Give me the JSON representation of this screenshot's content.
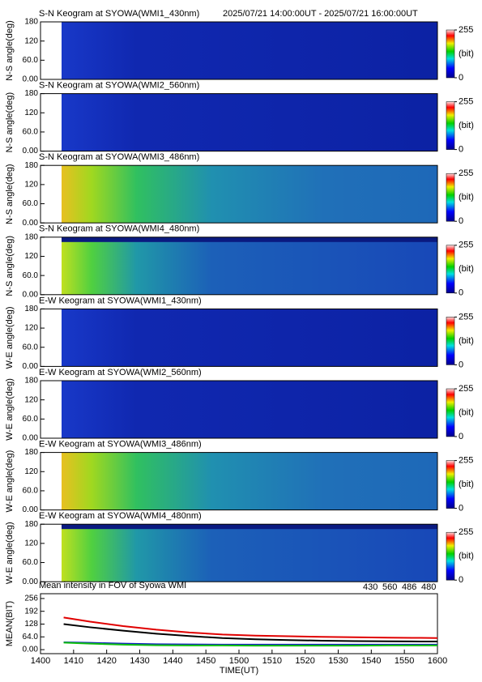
{
  "chart_data": [
    {
      "type": "heatmap",
      "title": "S-N Keogram at SYOWA(WMI1_430nm)",
      "subtitle": "2025/07/21 14:00:00UT - 2025/07/21 16:00:00UT",
      "ylabel": "N-S angle(deg)",
      "ylim": [
        0,
        180
      ],
      "yticks": [
        {
          "value": 0,
          "label": "0.00"
        },
        {
          "value": 60,
          "label": "60.0"
        },
        120,
        180
      ],
      "clim": [
        0,
        255
      ],
      "cticks": [
        0,
        255
      ],
      "clabel": "(bit)"
    },
    {
      "type": "heatmap",
      "title": "S-N Keogram at SYOWA(WMI2_560nm)",
      "ylabel": "N-S angle(deg)",
      "ylim": [
        0,
        180
      ],
      "yticks": [
        {
          "value": 0,
          "label": "0.00"
        },
        {
          "value": 60,
          "label": "60.0"
        },
        120,
        180
      ],
      "clim": [
        0,
        255
      ],
      "cticks": [
        0,
        255
      ],
      "clabel": "(bit)"
    },
    {
      "type": "heatmap",
      "title": "S-N Keogram at SYOWA(WMI3_486nm)",
      "ylabel": "N-S angle(deg)",
      "ylim": [
        0,
        180
      ],
      "yticks": [
        {
          "value": 0,
          "label": "0.00"
        },
        {
          "value": 60,
          "label": "60.0"
        },
        120,
        180
      ],
      "clim": [
        0,
        255
      ],
      "cticks": [
        0,
        255
      ],
      "clabel": "(bit)"
    },
    {
      "type": "heatmap",
      "title": "S-N Keogram at SYOWA(WMI4_480nm)",
      "ylabel": "N-S angle(deg)",
      "ylim": [
        0,
        180
      ],
      "yticks": [
        {
          "value": 0,
          "label": "0.00"
        },
        {
          "value": 60,
          "label": "60.0"
        },
        120,
        180
      ],
      "clim": [
        0,
        255
      ],
      "cticks": [
        0,
        255
      ],
      "clabel": "(bit)"
    },
    {
      "type": "heatmap",
      "title": "E-W Keogram at SYOWA(WMI1_430nm)",
      "ylabel": "W-E angle(deg)",
      "ylim": [
        0,
        180
      ],
      "yticks": [
        {
          "value": 0,
          "label": "0.00"
        },
        {
          "value": 60,
          "label": "60.0"
        },
        120,
        180
      ],
      "clim": [
        0,
        255
      ],
      "cticks": [
        0,
        255
      ],
      "clabel": "(bit)"
    },
    {
      "type": "heatmap",
      "title": "E-W Keogram at SYOWA(WMI2_560nm)",
      "ylabel": "W-E angle(deg)",
      "ylim": [
        0,
        180
      ],
      "yticks": [
        {
          "value": 0,
          "label": "0.00"
        },
        {
          "value": 60,
          "label": "60.0"
        },
        120,
        180
      ],
      "clim": [
        0,
        255
      ],
      "cticks": [
        0,
        255
      ],
      "clabel": "(bit)"
    },
    {
      "type": "heatmap",
      "title": "E-W Keogram at SYOWA(WMI3_486nm)",
      "ylabel": "W-E angle(deg)",
      "ylim": [
        0,
        180
      ],
      "yticks": [
        {
          "value": 0,
          "label": "0.00"
        },
        {
          "value": 60,
          "label": "60.0"
        },
        120,
        180
      ],
      "clim": [
        0,
        255
      ],
      "cticks": [
        0,
        255
      ],
      "clabel": "(bit)"
    },
    {
      "type": "heatmap",
      "title": "E-W Keogram at SYOWA(WMI4_480nm)",
      "ylabel": "W-E angle(deg)",
      "ylim": [
        0,
        180
      ],
      "yticks": [
        {
          "value": 0,
          "label": "0.00"
        },
        {
          "value": 60,
          "label": "60.0"
        },
        120,
        180
      ],
      "clim": [
        0,
        255
      ],
      "cticks": [
        0,
        255
      ],
      "clabel": "(bit)"
    },
    {
      "type": "line",
      "title": "Mean intensity in FOV of Syowa WMI",
      "ylabel": "MEAN(BIT)",
      "xlabel": "TIME(UT)",
      "xlim": [
        840,
        960
      ],
      "xticks": [
        {
          "value": 840,
          "label": "1400"
        },
        {
          "value": 850,
          "label": "1410"
        },
        {
          "value": 860,
          "label": "1420"
        },
        {
          "value": 870,
          "label": "1430"
        },
        {
          "value": 880,
          "label": "1440"
        },
        {
          "value": 890,
          "label": "1450"
        },
        {
          "value": 900,
          "label": "1500"
        },
        {
          "value": 910,
          "label": "1510"
        },
        {
          "value": 920,
          "label": "1520"
        },
        {
          "value": 930,
          "label": "1530"
        },
        {
          "value": 940,
          "label": "1540"
        },
        {
          "value": 950,
          "label": "1550"
        },
        {
          "value": 960,
          "label": "1600"
        }
      ],
      "ylim": [
        -20,
        280
      ],
      "yticks": [
        {
          "value": 0,
          "label": "0.00"
        },
        {
          "value": 64,
          "label": "64.0"
        },
        128,
        192,
        256
      ],
      "x": [
        847,
        855,
        865,
        875,
        885,
        895,
        905,
        915,
        925,
        935,
        945,
        955,
        960
      ],
      "series": [
        {
          "name": "430",
          "color": "#1020c0",
          "values": [
            37,
            34,
            30,
            27,
            26,
            25,
            25,
            25,
            25,
            25,
            25,
            25,
            25
          ]
        },
        {
          "name": "560",
          "color": "#10c010",
          "values": [
            35,
            30,
            25,
            22,
            21,
            21,
            20,
            20,
            20,
            20,
            21,
            21,
            21
          ]
        },
        {
          "name": "486",
          "color": "#e00000",
          "values": [
            161,
            140,
            118,
            100,
            86,
            76,
            70,
            67,
            64,
            62,
            60,
            59,
            58
          ]
        },
        {
          "name": "480",
          "color": "#000000",
          "values": [
            128,
            112,
            95,
            80,
            68,
            58,
            52,
            48,
            45,
            43,
            42,
            41,
            41
          ]
        }
      ]
    }
  ]
}
